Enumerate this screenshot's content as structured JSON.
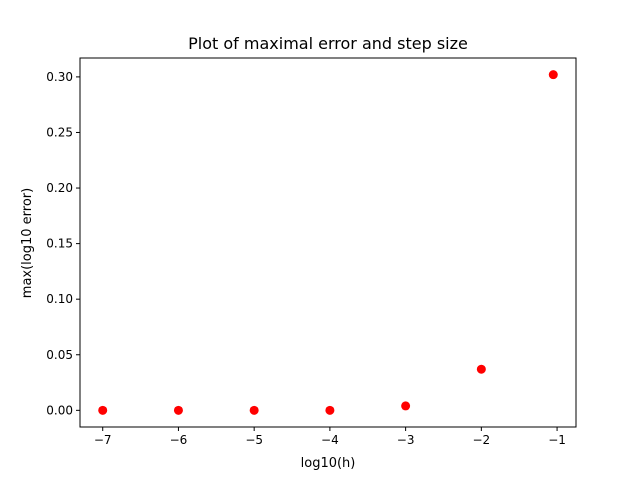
{
  "chart_data": {
    "type": "scatter",
    "title": "Plot of maximal error and step size",
    "xlabel": "log10(h)",
    "ylabel": "max(log10 error)",
    "xlim": [
      -7.3,
      -0.75
    ],
    "ylim": [
      -0.015,
      0.317
    ],
    "xticks": [
      -7,
      -6,
      -5,
      -4,
      -3,
      -2,
      -1
    ],
    "xtick_labels": [
      "−7",
      "−6",
      "−5",
      "−4",
      "−3",
      "−2",
      "−1"
    ],
    "yticks": [
      0.0,
      0.05,
      0.1,
      0.15,
      0.2,
      0.25,
      0.3
    ],
    "ytick_labels": [
      "0.00",
      "0.05",
      "0.10",
      "0.15",
      "0.20",
      "0.25",
      "0.30"
    ],
    "grid": false,
    "series": [
      {
        "color": "#ff0000",
        "marker": "circle",
        "points": [
          {
            "x": -7,
            "y": 0.0
          },
          {
            "x": -6,
            "y": 0.0
          },
          {
            "x": -5,
            "y": 0.0
          },
          {
            "x": -4,
            "y": 0.0
          },
          {
            "x": -3,
            "y": 0.004
          },
          {
            "x": -2,
            "y": 0.037
          },
          {
            "x": -1.05,
            "y": 0.302
          }
        ]
      }
    ]
  }
}
